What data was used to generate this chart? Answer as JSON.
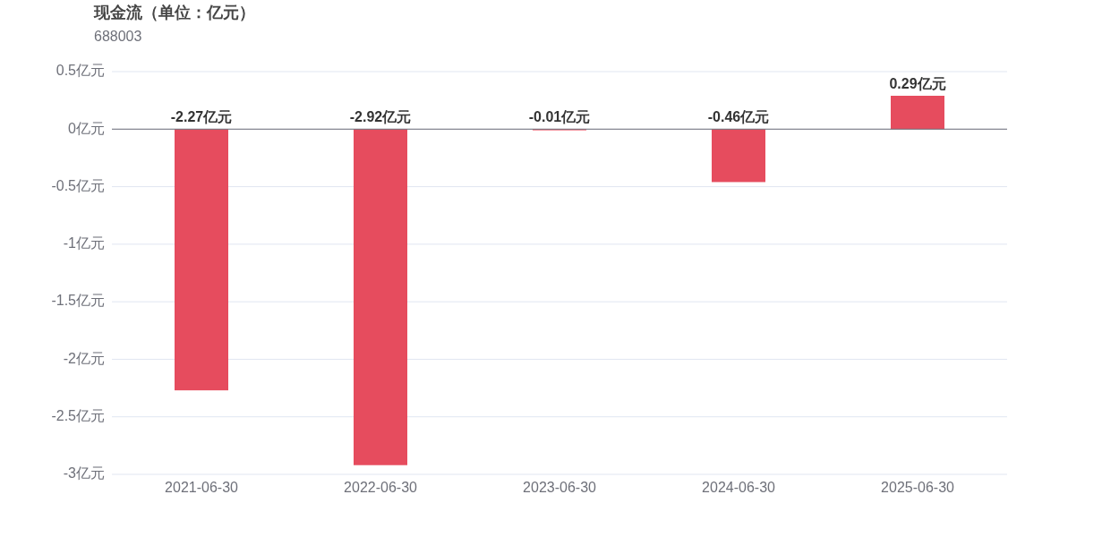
{
  "chart_data": {
    "type": "bar",
    "title": "现金流（单位：亿元）",
    "subtitle": "688003",
    "categories": [
      "2021-06-30",
      "2022-06-30",
      "2023-06-30",
      "2024-06-30",
      "2025-06-30"
    ],
    "values": [
      -2.27,
      -2.92,
      -0.01,
      -0.46,
      0.29
    ],
    "value_labels": [
      "-2.27亿元",
      "-2.92亿元",
      "-0.01亿元",
      "-0.46亿元",
      "0.29亿元"
    ],
    "color": "#e64c5e",
    "ylim": [
      -3,
      0.5
    ],
    "yticks": [
      {
        "value": 0.5,
        "label": "0.5亿元"
      },
      {
        "value": 0,
        "label": "0亿元"
      },
      {
        "value": -0.5,
        "label": "-0.5亿元"
      },
      {
        "value": -1,
        "label": "-1亿元"
      },
      {
        "value": -1.5,
        "label": "-1.5亿元"
      },
      {
        "value": -2,
        "label": "-2亿元"
      },
      {
        "value": -2.5,
        "label": "-2.5亿元"
      },
      {
        "value": -3,
        "label": "-3亿元"
      }
    ],
    "grid": "y"
  }
}
